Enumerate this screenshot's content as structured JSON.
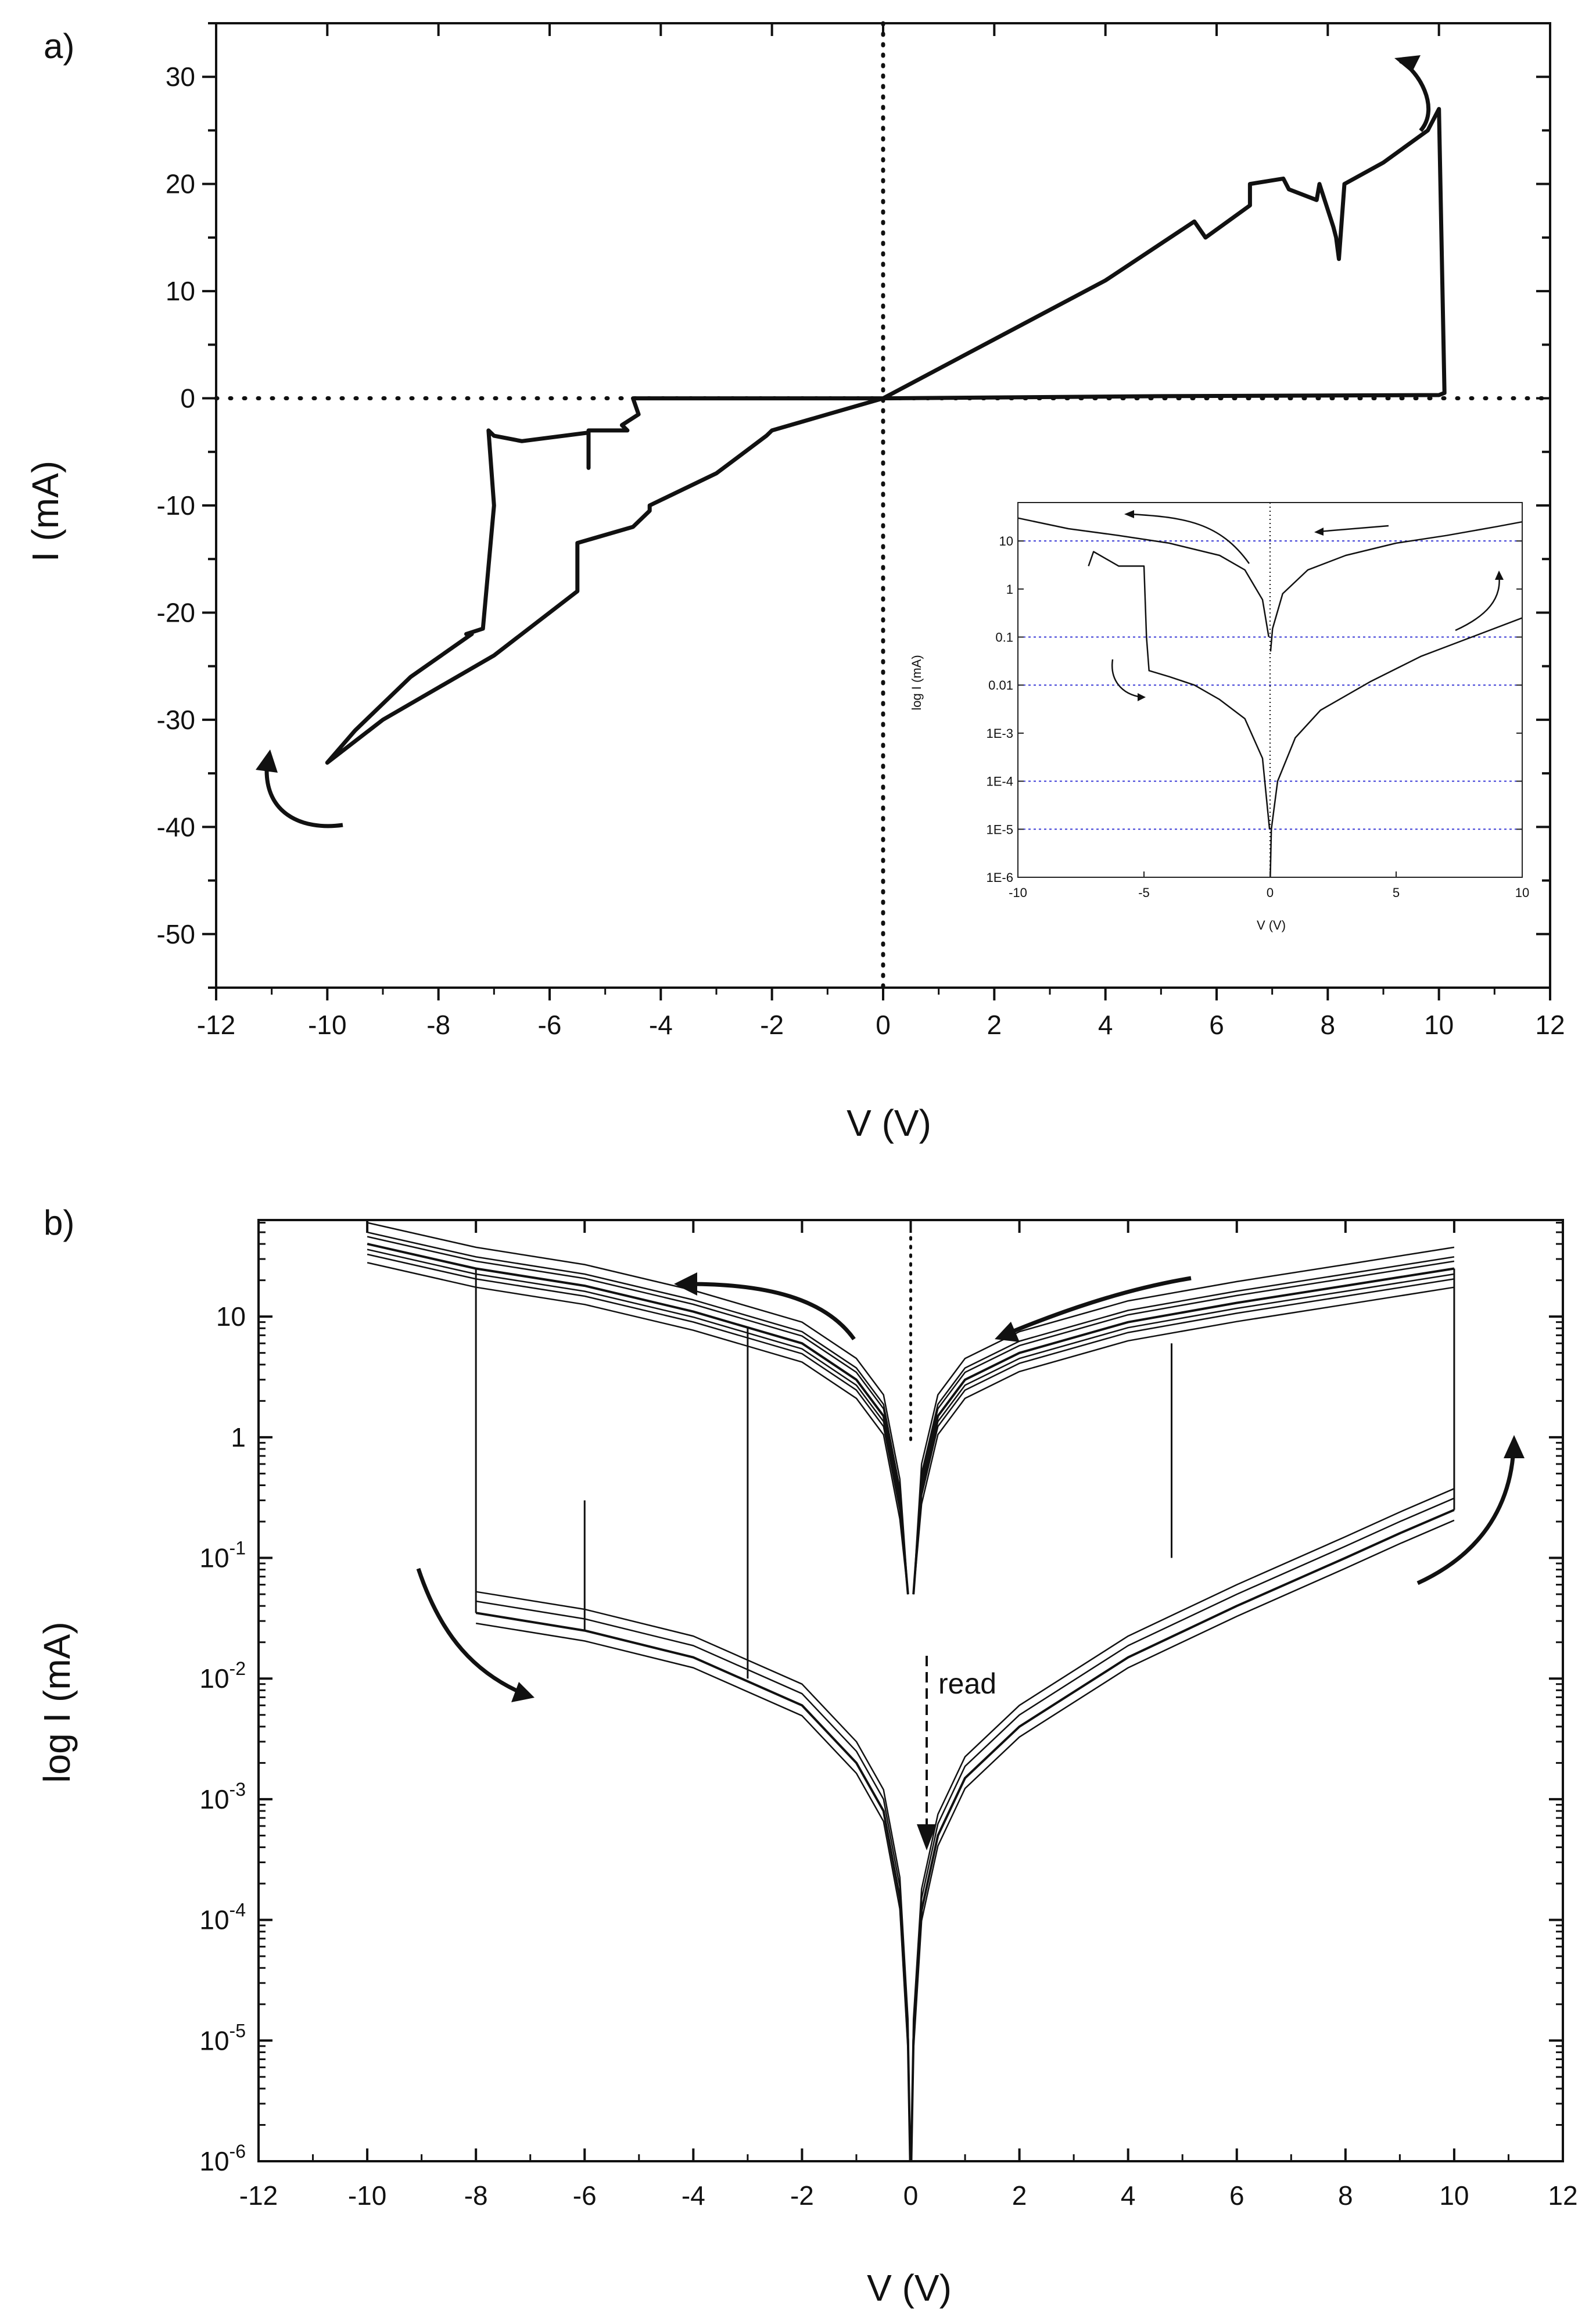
{
  "chart_data": [
    {
      "panel_label": "a)",
      "type": "line",
      "xlabel": "V (V)",
      "ylabel": "I (mA)",
      "xlim": [
        -12,
        12
      ],
      "ylim": [
        -55,
        35
      ],
      "xticks": [
        -12,
        -10,
        -8,
        -6,
        -4,
        -2,
        0,
        2,
        4,
        6,
        8,
        10,
        12
      ],
      "yticks": [
        30,
        20,
        10,
        0,
        -10,
        -20,
        -30,
        -40,
        -50
      ],
      "reference_lines": [
        "x=0 (dotted)",
        "y=0 (dotted)"
      ],
      "series": [
        {
          "name": "I-V sweep",
          "x": [
            0,
            2,
            4,
            5.6,
            5.8,
            6.6,
            6.6,
            7.2,
            7.3,
            7.8,
            7.85,
            8.1,
            8.15,
            8.2,
            8.3,
            9,
            9.8,
            10.0,
            10.1,
            10.0,
            5,
            0,
            -4.5,
            -4.4,
            -4.7,
            -4.6,
            -5.3,
            -5.3,
            -5.3,
            -6.5,
            -7.0,
            -7.1,
            -7.0,
            -7.2,
            -7.5,
            -7.4,
            -8.5,
            -9.5,
            -10,
            -9.0,
            -7.0,
            -5.5,
            -5.5,
            -4.5,
            -4.2,
            -4.2,
            -3.0,
            -2.1,
            -2.0,
            -1.0,
            0
          ],
          "y": [
            0,
            5.5,
            11,
            16.5,
            15,
            18,
            20,
            20.5,
            19.5,
            18.5,
            20,
            16,
            15,
            13,
            20,
            22,
            25,
            27,
            0.5,
            0.3,
            0.2,
            0,
            0,
            -1.5,
            -2.5,
            -3,
            -3,
            -6.5,
            -3.2,
            -4,
            -3.5,
            -3,
            -10,
            -21.5,
            -22,
            -22,
            -26,
            -31,
            -34,
            -30,
            -24,
            -18,
            -13.5,
            -12,
            -10.5,
            -10,
            -7,
            -3.5,
            -3,
            -1.5,
            0
          ]
        }
      ],
      "arrows": [
        "near (+10, +30): curved, sweep direction",
        "near (-11, -37): curved, sweep direction"
      ],
      "inset": {
        "type": "line",
        "yscale": "log",
        "xlabel": "V (V)",
        "ylabel": "log I (mA)",
        "xlim": [
          -10,
          10
        ],
        "ylim_log10": [
          -6,
          1.8
        ],
        "xticks": [
          -10,
          -5,
          0,
          5,
          10
        ],
        "ytick_labels": [
          "10",
          "1",
          "0.1",
          "0.01",
          "1E-3",
          "1E-4",
          "1E-5",
          "1E-6"
        ],
        "ytick_values": [
          10,
          1,
          0.1,
          0.01,
          0.001,
          0.0001,
          1e-05,
          1e-06
        ],
        "grid_values": [
          10,
          0.1,
          0.01,
          0.0001,
          1e-05
        ],
        "grid": "horizontal dotted blue lines",
        "series": [
          {
            "name": "positive ON branch",
            "x": [
              10,
              9,
              7,
              5,
              3,
              1.5,
              0.5,
              0.1,
              0.02
            ],
            "y": [
              25,
              20,
              13,
              9,
              5,
              2.5,
              0.8,
              0.15,
              0.05
            ]
          },
          {
            "name": "positive OFF branch",
            "x": [
              10,
              8,
              6,
              4,
              2,
              1,
              0.3,
              0.05,
              0.01
            ],
            "y": [
              0.25,
              0.1,
              0.04,
              0.012,
              0.003,
              0.0008,
              0.0001,
              1e-05,
              1e-06
            ]
          },
          {
            "name": "negative ON branch",
            "x": [
              -10,
              -8,
              -6,
              -4,
              -2,
              -1,
              -0.3,
              -0.05
            ],
            "y": [
              30,
              18,
              13,
              9,
              5,
              2.5,
              0.6,
              0.1
            ]
          },
          {
            "name": "negative switching branch",
            "x": [
              -7.2,
              -7.0,
              -6.0,
              -5.0,
              -4.9,
              -4.8,
              -4.0,
              -3.0,
              -2.0,
              -1.0,
              -0.3,
              -0.02
            ],
            "y": [
              3,
              6,
              3,
              3,
              0.1,
              0.02,
              0.015,
              0.01,
              0.005,
              0.002,
              0.0003,
              1e-05
            ]
          }
        ]
      }
    },
    {
      "panel_label": "b)",
      "type": "line",
      "yscale": "log",
      "xlabel": "V (V)",
      "ylabel": "log I (mA)",
      "xlim": [
        -12,
        12
      ],
      "ylim_log10": [
        -6,
        1.8
      ],
      "xticks": [
        -12,
        -10,
        -8,
        -6,
        -4,
        -2,
        0,
        2,
        4,
        6,
        8,
        10,
        12
      ],
      "yticks": [
        {
          "base": "10",
          "exp": ""
        },
        {
          "base": "1",
          "exp": ""
        },
        {
          "base": "10",
          "exp": "-1"
        },
        {
          "base": "10",
          "exp": "-2"
        },
        {
          "base": "10",
          "exp": "-3"
        },
        {
          "base": "10",
          "exp": "-4"
        },
        {
          "base": "10",
          "exp": "-5"
        },
        {
          "base": "10",
          "exp": "-6"
        }
      ],
      "ytick_values": [
        10,
        1,
        0.1,
        0.01,
        0.001,
        0.0001,
        1e-05,
        1e-06
      ],
      "annotation": "read",
      "series": [
        {
          "name": "positive ON envelope",
          "x": [
            10,
            8,
            6,
            4,
            2,
            1,
            0.5,
            0.2,
            0.05
          ],
          "y": [
            25,
            18,
            13,
            9,
            5,
            3,
            1.5,
            0.4,
            0.05
          ]
        },
        {
          "name": "positive OFF envelope",
          "x": [
            10,
            9,
            8,
            6,
            4,
            2,
            1,
            0.5,
            0.2,
            0.05,
            0.01
          ],
          "y": [
            0.25,
            0.16,
            0.1,
            0.04,
            0.015,
            0.004,
            0.0015,
            0.0005,
            0.00012,
            1e-05,
            1e-06
          ]
        },
        {
          "name": "negative ON envelope",
          "x": [
            -10,
            -8,
            -6,
            -4,
            -2,
            -1,
            -0.5,
            -0.2,
            -0.05
          ],
          "y": [
            40,
            25,
            18,
            11,
            6,
            3,
            1.5,
            0.3,
            0.05
          ]
        },
        {
          "name": "negative OFF envelope",
          "x": [
            -8,
            -6,
            -4,
            -2,
            -1,
            -0.5,
            -0.2,
            -0.05,
            -0.01
          ],
          "y": [
            0.035,
            0.025,
            0.015,
            0.006,
            0.002,
            0.0008,
            0.00015,
            1e-05,
            1e-06
          ]
        }
      ],
      "arrows": [
        "upper-left, pointing left",
        "upper-right, pointing left",
        "lower-left, pointing down-right",
        "right side, pointing up",
        "dashed 'read' arrow downward near V=0.3"
      ]
    }
  ]
}
